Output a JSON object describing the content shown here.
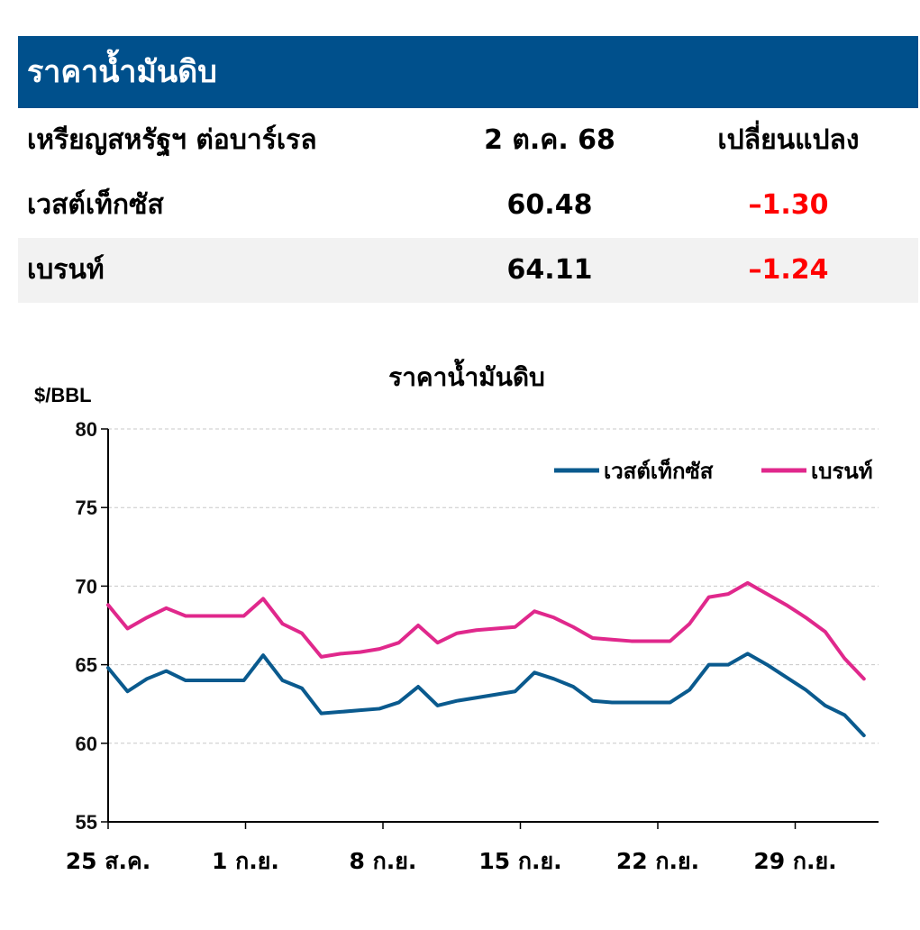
{
  "table": {
    "title": "ราคาน้ำมันดิบ",
    "header": {
      "label": "เหรียญสหรัฐฯ ต่อบาร์เรล",
      "date": "2 ต.ค. 68",
      "change": "เปลี่ยนแปลง"
    },
    "rows": [
      {
        "name": "เวสต์เท็กซัส",
        "price": "60.48",
        "change": "–1.30"
      },
      {
        "name": "เบรนท์",
        "price": "64.11",
        "change": "–1.24"
      }
    ]
  },
  "colors": {
    "header_bg": "#00508c",
    "wti": "#0a5a8e",
    "brent": "#e0288c",
    "negative": "#ff0000"
  },
  "chart_data": {
    "type": "line",
    "title": "ราคาน้ำมันดิบ",
    "ylabel": "$/BBL",
    "ylim": [
      55,
      80
    ],
    "yticks": [
      55,
      60,
      65,
      70,
      75,
      80
    ],
    "x_tick_labels": [
      "25 ส.ค.",
      "1 ก.ย.",
      "8 ก.ย.",
      "15 ก.ย.",
      "22 ก.ย.",
      "29 ก.ย."
    ],
    "x_tick_index": [
      0,
      5,
      10,
      15,
      20,
      25
    ],
    "legend_position": "top-right",
    "series": [
      {
        "name": "เวสต์เท็กซัส",
        "values": [
          64.8,
          63.3,
          64.1,
          64.6,
          64.0,
          64.0,
          64.0,
          64.0,
          65.6,
          64.0,
          63.5,
          61.9,
          62.0,
          62.1,
          62.2,
          62.6,
          63.6,
          62.4,
          62.7,
          62.9,
          63.1,
          63.3,
          64.5,
          64.1,
          63.6,
          62.7,
          62.6,
          62.6,
          62.6,
          62.6,
          63.4,
          65.0,
          65.0,
          65.7,
          65.0,
          64.2,
          63.4,
          62.4,
          61.8,
          60.5
        ]
      },
      {
        "name": "เบรนท์",
        "values": [
          68.8,
          67.3,
          68.0,
          68.6,
          68.1,
          68.1,
          68.1,
          68.1,
          69.2,
          67.6,
          67.0,
          65.5,
          65.7,
          65.8,
          66.0,
          66.4,
          67.5,
          66.4,
          67.0,
          67.2,
          67.3,
          67.4,
          68.4,
          68.0,
          67.4,
          66.7,
          66.6,
          66.5,
          66.5,
          66.5,
          67.6,
          69.3,
          69.5,
          70.2,
          69.5,
          68.8,
          68.0,
          67.1,
          65.4,
          64.1
        ]
      }
    ]
  }
}
